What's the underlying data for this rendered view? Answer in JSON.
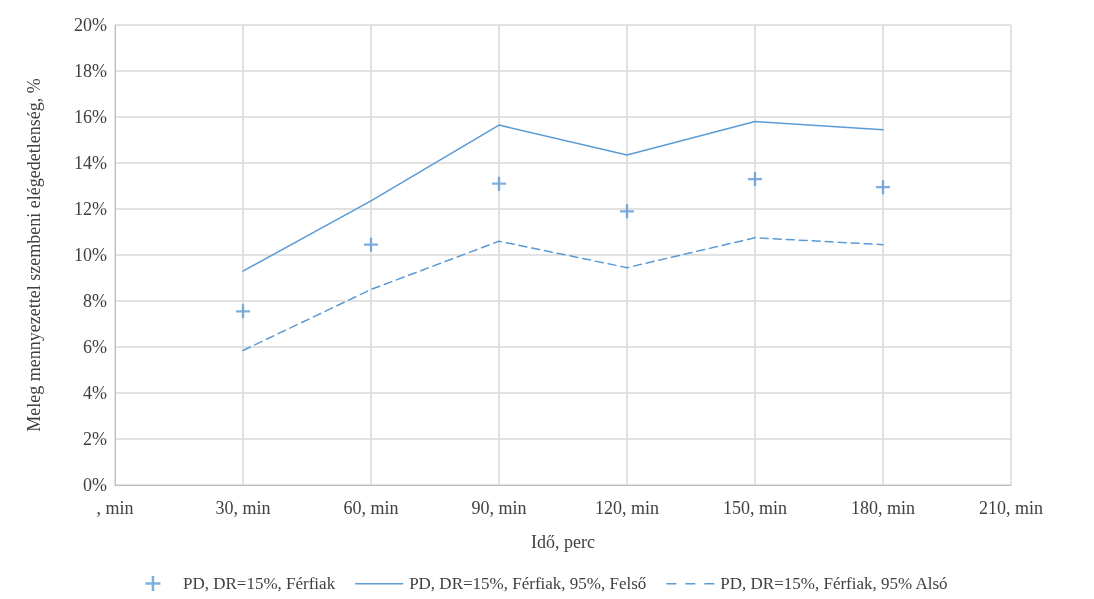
{
  "chart_data": {
    "type": "line",
    "xlabel": "Idő, perc",
    "ylabel": "Meleg mennyezettel szembeni elégedetlenség, %",
    "categories": [
      ", min",
      "30, min",
      "60, min",
      "90, min",
      "120, min",
      "150, min",
      "180, min",
      "210, min"
    ],
    "ylim": [
      0,
      20
    ],
    "yticks": [
      {
        "value": 0,
        "label": "0%"
      },
      {
        "value": 2,
        "label": "2%"
      },
      {
        "value": 4,
        "label": "4%"
      },
      {
        "value": 6,
        "label": "6%"
      },
      {
        "value": 8,
        "label": "8%"
      },
      {
        "value": 10,
        "label": "10%"
      },
      {
        "value": 12,
        "label": "12%"
      },
      {
        "value": 14,
        "label": "14%"
      },
      {
        "value": 16,
        "label": "16%"
      },
      {
        "value": 18,
        "label": "18%"
      },
      {
        "value": 20,
        "label": "20%"
      }
    ],
    "grid": true,
    "legend": "bottom",
    "series": [
      {
        "name": "PD, DR=15%, Férfiak",
        "type": "scatter",
        "marker": "cross",
        "color": "#5b9bd5",
        "values": [
          null,
          7.55,
          10.45,
          13.1,
          11.9,
          13.3,
          12.95,
          null
        ]
      },
      {
        "name": "PD, DR=15%, Férfiak, 95%, Felső",
        "line_style": "solid",
        "marker": "none",
        "color": "#5b9bd5",
        "values": [
          null,
          9.3,
          12.35,
          15.65,
          14.35,
          15.8,
          15.45,
          null
        ]
      },
      {
        "name": "PD, DR=15%, Férfiak, 95% Alsó",
        "line_style": "dashed",
        "marker": "none",
        "color": "#5b9bd5",
        "values": [
          null,
          5.85,
          8.5,
          10.6,
          9.45,
          10.75,
          10.45,
          null
        ]
      }
    ]
  }
}
